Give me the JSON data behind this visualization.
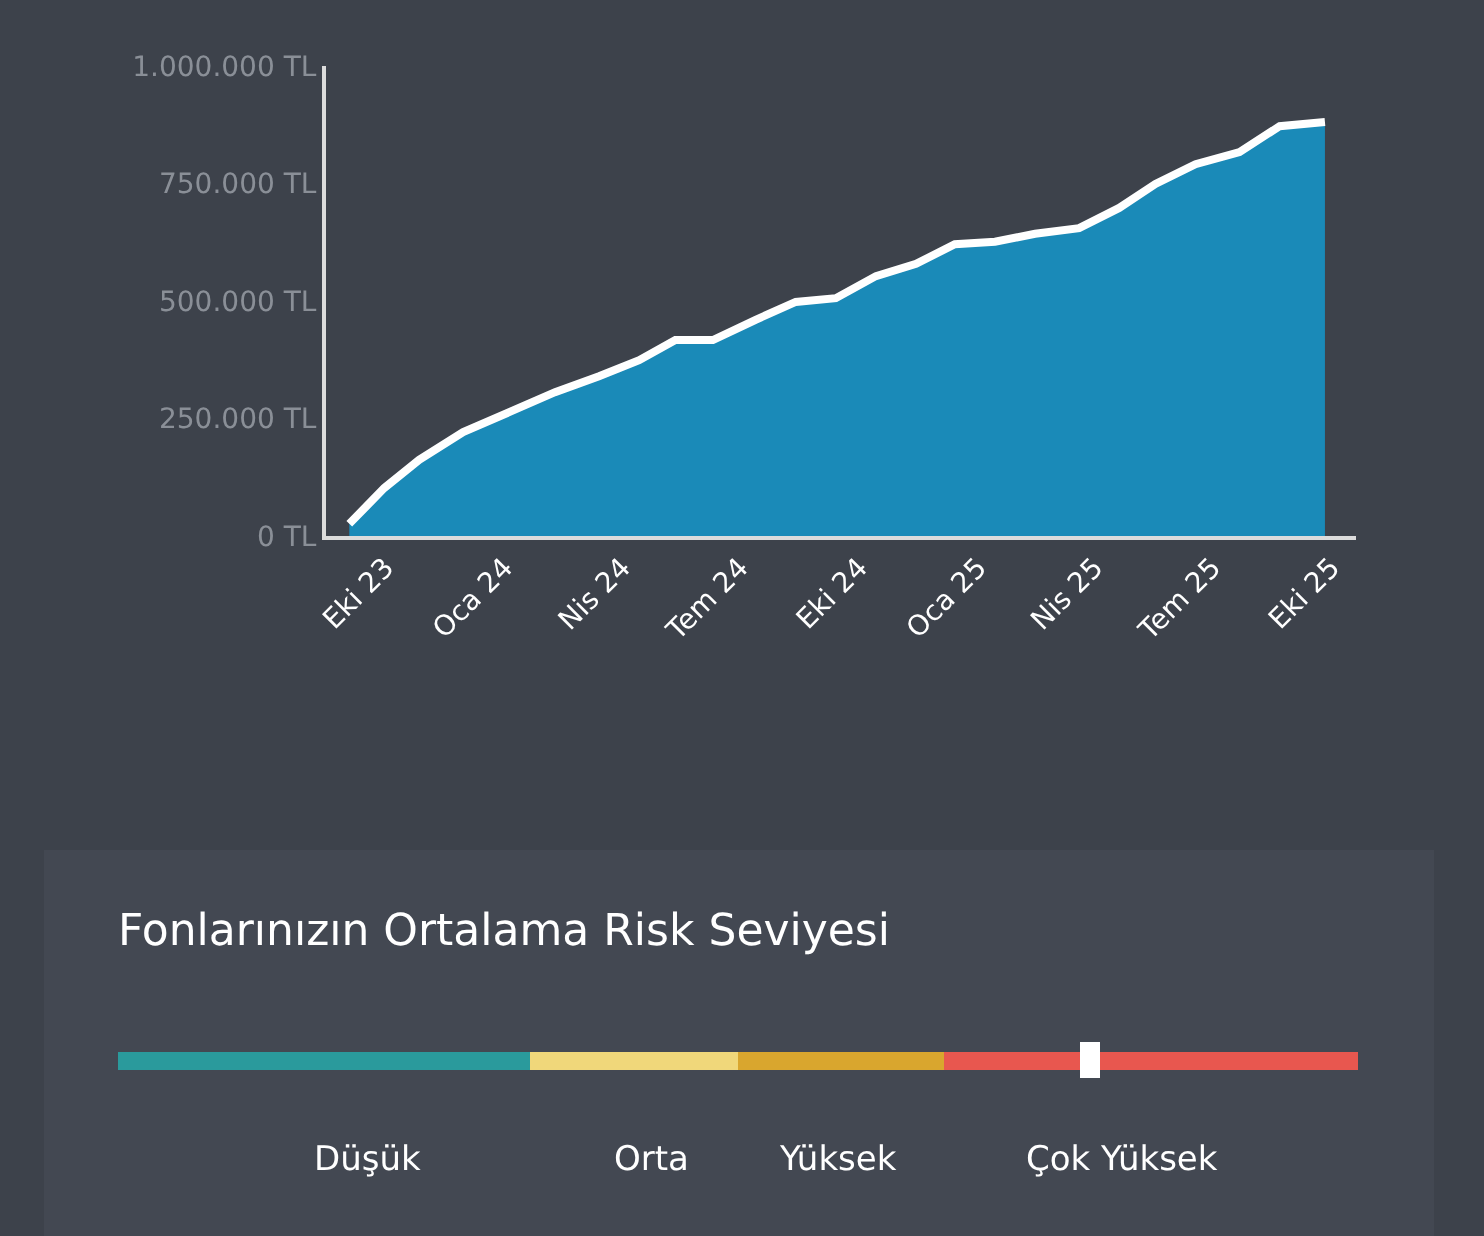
{
  "chart_data": [
    {
      "type": "area",
      "x": [
        "2023-09-03",
        "2023-09-30",
        "2023-10-27",
        "2023-11-30",
        "2024-01-05",
        "2024-02-09",
        "2024-03-14",
        "2024-04-14",
        "2024-05-12",
        "2024-06-10",
        "2024-07-13",
        "2024-08-13",
        "2024-09-13",
        "2024-10-14",
        "2024-11-14",
        "2024-12-14",
        "2025-01-14",
        "2025-02-14",
        "2025-03-20",
        "2025-04-20",
        "2025-05-18",
        "2025-06-18",
        "2025-07-22",
        "2025-08-22",
        "2025-09-26"
      ],
      "series": [
        {
          "color": "#1a8ab8",
          "values": [
            26000,
            102000,
            162000,
            221000,
            264000,
            306000,
            340000,
            374000,
            417000,
            417000,
            460000,
            498000,
            506000,
            553000,
            579000,
            621000,
            626000,
            643000,
            655000,
            698000,
            749000,
            791000,
            817000,
            872000,
            881000
          ]
        }
      ],
      "xlim": [
        "2023-08-16",
        "2025-10-20"
      ],
      "xticks": [
        {
          "value": "2023-10-01",
          "label": "Eki 23"
        },
        {
          "value": "2024-01-01",
          "label": "Oca 24"
        },
        {
          "value": "2024-04-01",
          "label": "Nis 24"
        },
        {
          "value": "2024-07-01",
          "label": "Tem 24"
        },
        {
          "value": "2024-10-01",
          "label": "Eki 24"
        },
        {
          "value": "2025-01-01",
          "label": "Oca 25"
        },
        {
          "value": "2025-04-01",
          "label": "Nis 25"
        },
        {
          "value": "2025-07-01",
          "label": "Tem 25"
        },
        {
          "value": "2025-10-01",
          "label": "Eki 25"
        }
      ],
      "ylim": [
        0,
        1000000
      ],
      "yticks": [
        {
          "value": 0,
          "label": "0 TL"
        },
        {
          "value": 250000,
          "label": "250.000 TL"
        },
        {
          "value": 500000,
          "label": "500.000 TL"
        },
        {
          "value": 750000,
          "label": "750.000 TL"
        },
        {
          "value": 1000000,
          "label": "1.000.000 TL"
        }
      ],
      "grid": false,
      "legend": false
    },
    {
      "type": "other",
      "title": "Fonlarınızın Ortalama Risk Seviyesi",
      "annotations": [
        "Düşük",
        "Orta",
        "Yüksek",
        "Çok Yüksek"
      ]
    }
  ]
}
